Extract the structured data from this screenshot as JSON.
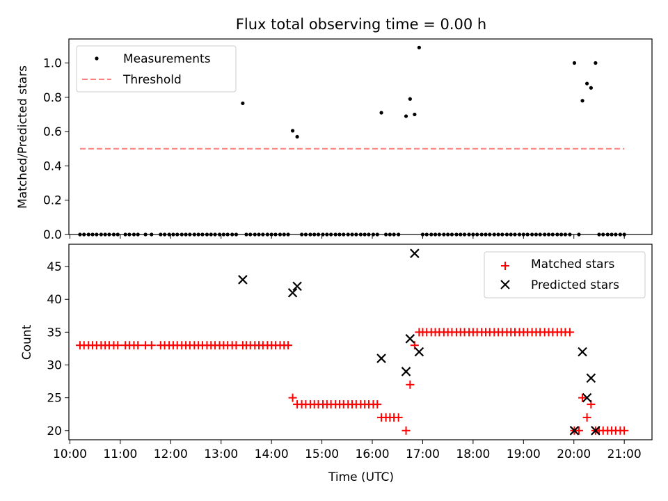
{
  "title": "Flux total observing time = 0.00 h",
  "colors": {
    "measurement": "#000000",
    "threshold": "#ff7f7f",
    "matched": "#ff0000",
    "predicted": "#000000"
  },
  "chart_data": [
    {
      "type": "scatter",
      "panel": "top",
      "ylabel": "Matched/Predicted stars",
      "xlabel": "",
      "ylim": [
        0,
        1.14
      ],
      "xlim": [
        9.98,
        21.55
      ],
      "yticks": [
        "0.0",
        "0.2",
        "0.4",
        "0.6",
        "0.8",
        "1.0"
      ],
      "ytick_values": [
        0,
        0.2,
        0.4,
        0.6,
        0.8,
        1.0
      ],
      "legend": {
        "placement": "upper-left",
        "entries": [
          "Measurements",
          "Threshold"
        ]
      },
      "threshold": {
        "name": "Threshold",
        "value": 0.5,
        "x": [
          10.2,
          21.0
        ]
      },
      "series": [
        {
          "name": "Measurements",
          "points": [
            [
              13.43,
              0.765
            ],
            [
              14.42,
              0.605
            ],
            [
              14.51,
              0.57
            ],
            [
              16.18,
              0.71
            ],
            [
              16.67,
              0.69
            ],
            [
              16.75,
              0.79
            ],
            [
              16.84,
              0.7
            ],
            [
              16.93,
              1.09
            ],
            [
              20.01,
              1.0
            ],
            [
              20.17,
              0.78
            ],
            [
              20.26,
              0.88
            ],
            [
              20.34,
              0.855
            ],
            [
              20.43,
              1.0
            ]
          ],
          "zero_x": [
            10.2,
            10.28,
            10.37,
            10.45,
            10.53,
            10.62,
            10.7,
            10.78,
            10.87,
            10.95,
            11.1,
            11.18,
            11.27,
            11.35,
            11.5,
            11.62,
            11.8,
            11.88,
            11.97,
            12.05,
            12.13,
            12.22,
            12.3,
            12.38,
            12.47,
            12.55,
            12.63,
            12.72,
            12.8,
            12.88,
            12.97,
            13.05,
            13.13,
            13.22,
            13.3,
            13.5,
            13.58,
            13.67,
            13.75,
            13.83,
            13.92,
            14.0,
            14.08,
            14.17,
            14.25,
            14.33,
            14.6,
            14.68,
            14.77,
            14.85,
            14.93,
            15.02,
            15.1,
            15.18,
            15.27,
            15.35,
            15.43,
            15.52,
            15.6,
            15.68,
            15.77,
            15.85,
            15.93,
            16.02,
            16.1,
            16.27,
            16.35,
            16.43,
            16.52,
            17.0,
            17.08,
            17.17,
            17.25,
            17.33,
            17.42,
            17.5,
            17.58,
            17.67,
            17.75,
            17.83,
            17.92,
            18.0,
            18.08,
            18.17,
            18.25,
            18.33,
            18.42,
            18.5,
            18.58,
            18.67,
            18.75,
            18.83,
            18.92,
            19.0,
            19.08,
            19.17,
            19.25,
            19.33,
            19.42,
            19.5,
            19.58,
            19.67,
            19.75,
            19.83,
            19.92,
            20.1,
            20.5,
            20.58,
            20.67,
            20.75,
            20.83,
            20.92,
            21.0
          ]
        }
      ]
    },
    {
      "type": "scatter",
      "panel": "bottom",
      "ylabel": "Count",
      "xlabel": "Time (UTC)",
      "ylim": [
        18.6,
        48.4
      ],
      "xlim": [
        9.98,
        21.55
      ],
      "yticks": [
        "20",
        "25",
        "30",
        "35",
        "40",
        "45"
      ],
      "ytick_values": [
        20,
        25,
        30,
        35,
        40,
        45
      ],
      "xticks": [
        "10:00",
        "11:00",
        "12:00",
        "13:00",
        "14:00",
        "15:00",
        "16:00",
        "17:00",
        "18:00",
        "19:00",
        "20:00",
        "21:00"
      ],
      "xtick_values": [
        10,
        11,
        12,
        13,
        14,
        15,
        16,
        17,
        18,
        19,
        20,
        21
      ],
      "legend": {
        "placement": "upper-right",
        "entries": [
          "Matched stars",
          "Predicted stars"
        ]
      },
      "series": [
        {
          "name": "Matched stars",
          "runs": [
            {
              "y": 33,
              "x": [
                10.2,
                10.28,
                10.37,
                10.45,
                10.53,
                10.62,
                10.7,
                10.78,
                10.87,
                10.95,
                11.1,
                11.18,
                11.27,
                11.35,
                11.5,
                11.62,
                11.8,
                11.88,
                11.97,
                12.05,
                12.13,
                12.22,
                12.3,
                12.38,
                12.47,
                12.55,
                12.63,
                12.72,
                12.8,
                12.88,
                12.97,
                13.05,
                13.13,
                13.22,
                13.3,
                13.43,
                13.5,
                13.58,
                13.67,
                13.75,
                13.83,
                13.92,
                14.0,
                14.08,
                14.17,
                14.25,
                14.33
              ]
            },
            {
              "y": 24,
              "x": [
                14.51,
                14.6,
                14.68,
                14.77,
                14.85,
                14.93,
                15.02,
                15.1,
                15.18,
                15.27,
                15.35,
                15.43,
                15.52,
                15.6,
                15.68,
                15.77,
                15.85,
                15.93,
                16.02,
                16.1
              ]
            },
            {
              "y": 22,
              "x": [
                16.18,
                16.27,
                16.35,
                16.43,
                16.52
              ]
            },
            {
              "y": 35,
              "x": [
                16.93,
                17.0,
                17.08,
                17.17,
                17.25,
                17.33,
                17.42,
                17.5,
                17.58,
                17.67,
                17.75,
                17.83,
                17.92,
                18.0,
                18.08,
                18.17,
                18.25,
                18.33,
                18.42,
                18.5,
                18.58,
                18.67,
                18.75,
                18.83,
                18.92,
                19.0,
                19.08,
                19.17,
                19.25,
                19.33,
                19.42,
                19.5,
                19.58,
                19.67,
                19.75,
                19.83,
                19.92
              ]
            },
            {
              "y": 20,
              "x": [
                20.5,
                20.58,
                20.67,
                20.75,
                20.83,
                20.92,
                21.0
              ]
            }
          ],
          "points": [
            [
              14.42,
              25
            ],
            [
              16.67,
              20
            ],
            [
              16.75,
              27
            ],
            [
              16.84,
              33
            ],
            [
              20.01,
              20
            ],
            [
              20.1,
              20
            ],
            [
              20.17,
              25
            ],
            [
              20.26,
              22
            ],
            [
              20.34,
              24
            ],
            [
              20.43,
              20
            ]
          ]
        },
        {
          "name": "Predicted stars",
          "points": [
            [
              13.43,
              43
            ],
            [
              14.42,
              41
            ],
            [
              14.51,
              42
            ],
            [
              16.18,
              31
            ],
            [
              16.67,
              29
            ],
            [
              16.75,
              34
            ],
            [
              16.84,
              47
            ],
            [
              16.93,
              32
            ],
            [
              20.01,
              20
            ],
            [
              20.17,
              32
            ],
            [
              20.26,
              25
            ],
            [
              20.34,
              28
            ],
            [
              20.43,
              20
            ]
          ]
        }
      ]
    }
  ]
}
